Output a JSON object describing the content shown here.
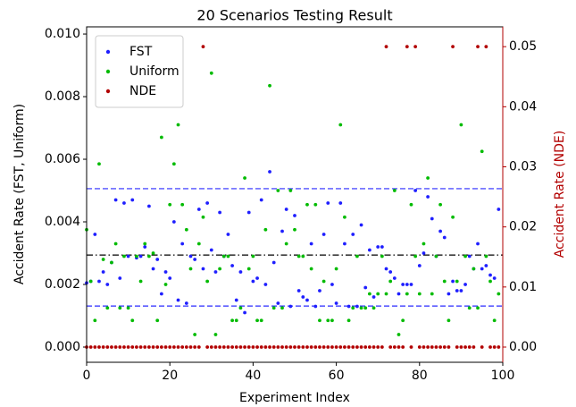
{
  "chart_data": {
    "type": "scatter",
    "title": "20 Scenarios Testing Result",
    "x_label": "Experiment Index",
    "y_label": "Accident Rate (FST, Uniform)",
    "y2_label": "Accident Rate (NDE)",
    "xlim": [
      0,
      100
    ],
    "xticks": [
      0,
      20,
      40,
      60,
      80,
      100
    ],
    "ylim": [
      -0.000486,
      0.01023
    ],
    "yticks": [
      {
        "value": 0,
        "label": "0.000"
      },
      {
        "value": 0.002,
        "label": "0.002"
      },
      {
        "value": 0.004,
        "label": "0.004"
      },
      {
        "value": 0.006,
        "label": "0.006"
      },
      {
        "value": 0.008,
        "label": "0.008"
      },
      {
        "value": 0.01,
        "label": "0.010"
      }
    ],
    "y2lim": [
      -0.00253,
      0.0533
    ],
    "y2ticks": [
      {
        "value": 0,
        "label": "0.00"
      },
      {
        "value": 0.01,
        "label": "0.01"
      },
      {
        "value": 0.02,
        "label": "0.02"
      },
      {
        "value": 0.03,
        "label": "0.03"
      },
      {
        "value": 0.04,
        "label": "0.04"
      },
      {
        "value": 0.05,
        "label": "0.05"
      }
    ],
    "y2_color": "#b20000",
    "legend": "upper left",
    "hlines": [
      {
        "value": 0.00506,
        "color": "#2a2aff",
        "style": "dashed"
      },
      {
        "value": 0.00131,
        "color": "#2a2aff",
        "style": "dashed"
      },
      {
        "value": 0.00294,
        "color": "#000000",
        "style": "dashdot"
      }
    ],
    "x": [
      0,
      1,
      2,
      3,
      4,
      5,
      6,
      7,
      8,
      9,
      10,
      11,
      12,
      13,
      14,
      15,
      16,
      17,
      18,
      19,
      20,
      21,
      22,
      23,
      24,
      25,
      26,
      27,
      28,
      29,
      30,
      31,
      32,
      33,
      34,
      35,
      36,
      37,
      38,
      39,
      40,
      41,
      42,
      43,
      44,
      45,
      46,
      47,
      48,
      49,
      50,
      51,
      52,
      53,
      54,
      55,
      56,
      57,
      58,
      59,
      60,
      61,
      62,
      63,
      64,
      65,
      66,
      67,
      68,
      69,
      70,
      71,
      72,
      73,
      74,
      75,
      76,
      77,
      78,
      79,
      80,
      81,
      82,
      83,
      84,
      85,
      86,
      87,
      88,
      89,
      90,
      91,
      92,
      93,
      94,
      95,
      96,
      97,
      98,
      99
    ],
    "series": [
      {
        "name": "FST",
        "color": "#1f1fff",
        "values": [
          0.00205,
          0.0021,
          0.0036,
          0.0021,
          0.0024,
          0.002,
          0.0027,
          0.0047,
          0.0022,
          0.0046,
          0.0029,
          0.0047,
          0.00285,
          0.0029,
          0.0032,
          0.0045,
          0.0025,
          0.0028,
          0.0017,
          0.0024,
          0.0022,
          0.004,
          0.0015,
          0.0033,
          0.0014,
          0.0029,
          0.0028,
          0.0044,
          0.0025,
          0.0046,
          0.0031,
          0.0024,
          0.0043,
          0.0029,
          0.0036,
          0.0026,
          0.0015,
          0.0024,
          0.0011,
          0.0043,
          0.0021,
          0.0022,
          0.0047,
          0.002,
          0.0056,
          0.0027,
          0.0014,
          0.0037,
          0.0044,
          0.0013,
          0.0042,
          0.0018,
          0.0016,
          0.0015,
          0.0033,
          0.0013,
          0.0018,
          0.0036,
          0.0046,
          0.002,
          0.0014,
          0.0046,
          0.0033,
          0.0013,
          0.0036,
          0.0013,
          0.0039,
          0.0019,
          0.0031,
          0.0016,
          0.0032,
          0.0032,
          0.0025,
          0.0024,
          0.0022,
          0.0017,
          0.002,
          0.002,
          0.002,
          0.005,
          0.0026,
          0.003,
          0.0048,
          0.0041,
          0.0029,
          0.0037,
          0.0035,
          0.0017,
          0.0021,
          0.0018,
          0.0018,
          0.002,
          0.0029,
          0.0025,
          0.0033,
          0.0025,
          0.0026,
          0.0023,
          0.0022,
          0.0044
        ]
      },
      {
        "name": "Uniform",
        "color": "#00bb00",
        "values": [
          0.00375,
          0.0021,
          0.00085,
          0.00585,
          0.0028,
          0.00125,
          0.0027,
          0.0033,
          0.00125,
          0.0029,
          0.00125,
          0.00085,
          0.0029,
          0.0021,
          0.0033,
          0.0029,
          0.003,
          0.00085,
          0.0067,
          0.002,
          0.00455,
          0.00585,
          0.0071,
          0.00455,
          0.00375,
          0.0025,
          0.0004,
          0.0033,
          0.00415,
          0.0021,
          0.00875,
          0.0004,
          0.0025,
          0.0029,
          0.0029,
          0.00085,
          0.00085,
          0.00125,
          0.0054,
          0.0025,
          0.0029,
          0.00085,
          0.00085,
          0.00375,
          0.00835,
          0.00125,
          0.005,
          0.00125,
          0.0033,
          0.005,
          0.00375,
          0.0029,
          0.0029,
          0.00455,
          0.0025,
          0.00455,
          0.00085,
          0.0021,
          0.00085,
          0.00085,
          0.0025,
          0.0071,
          0.00415,
          0.00085,
          0.00125,
          0.0029,
          0.00125,
          0.00125,
          0.0017,
          0.00125,
          0.0017,
          0.0029,
          0.0017,
          0.0021,
          0.005,
          0.0004,
          0.00085,
          0.0017,
          0.00455,
          0.0029,
          0.0017,
          0.0033,
          0.0054,
          0.0017,
          0.0029,
          0.00455,
          0.0021,
          0.00085,
          0.00415,
          0.0021,
          0.0071,
          0.0029,
          0.00125,
          0.0025,
          0.00125,
          0.00625,
          0.0029,
          0.0021,
          0.00085,
          0.0017
        ]
      },
      {
        "name": "NDE",
        "color": "#b20000",
        "axis": "y2",
        "values": [
          0,
          0,
          0,
          0,
          0,
          0,
          0,
          0,
          0,
          0,
          0,
          0,
          0,
          0,
          0,
          0,
          0,
          0,
          0,
          0,
          0,
          0,
          0,
          0,
          0,
          0,
          0,
          0,
          0.05,
          0,
          0,
          0,
          0,
          0,
          0,
          0,
          0,
          0,
          0,
          0,
          0,
          0,
          0,
          0,
          0,
          0,
          0,
          0,
          0,
          0,
          0,
          0,
          0,
          0,
          0,
          0,
          0,
          0,
          0,
          0,
          0,
          0,
          0,
          0,
          0,
          0,
          0,
          0,
          0,
          0,
          0,
          0,
          0.05,
          0,
          0,
          0,
          0,
          0.05,
          0,
          0.05,
          0,
          0,
          0,
          0,
          0,
          0,
          0,
          0,
          0.05,
          0,
          0,
          0,
          0,
          0,
          0.05,
          0,
          0.05,
          0,
          0,
          0
        ]
      }
    ]
  }
}
